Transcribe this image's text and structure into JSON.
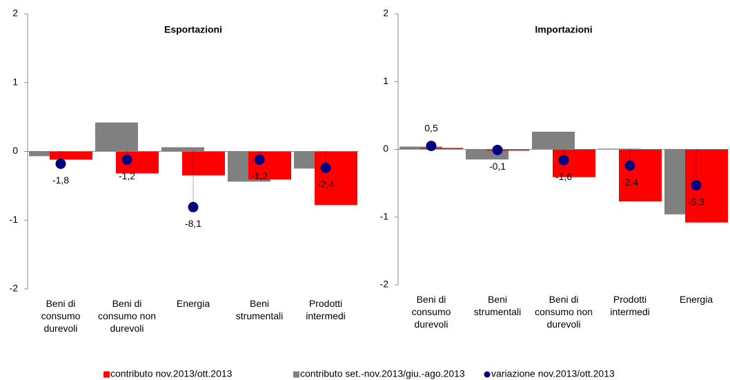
{
  "chart_data": [
    {
      "type": "bar",
      "title": "Esportazioni",
      "categories": [
        "Beni di\nconsumo\ndurevoli",
        "Beni di\nconsumo non\ndurevoli",
        "Energia",
        "Beni\nstrumentali",
        "Prodotti\nintermedi"
      ],
      "ylim": [
        -2,
        2
      ],
      "yticks": [
        -2,
        -1,
        0,
        1,
        2
      ],
      "y2lim": [
        -20,
        20
      ],
      "series": [
        {
          "name": "contributo nov.2013/ott.2013",
          "color": "#ff0000",
          "values": [
            -0.12,
            -0.32,
            -0.35,
            -0.41,
            -0.78
          ]
        },
        {
          "name": "contributo set.-nov.2013/giu.-ago.2013",
          "color": "#808080",
          "values": [
            -0.07,
            0.42,
            0.06,
            -0.44,
            -0.25
          ]
        },
        {
          "name": "variazione nov.2013/ott.2013",
          "color": "#000080",
          "type": "scatter",
          "axis": "y2",
          "values": [
            -1.8,
            -1.2,
            -8.1,
            -1.2,
            -2.4
          ],
          "value_labels": [
            "-1,8",
            "-1,2",
            "-8,1",
            "-1,2",
            "-2,4"
          ]
        }
      ]
    },
    {
      "type": "bar",
      "title": "Importazioni",
      "categories": [
        "Beni di\nconsumo\ndurevoli",
        "Beni\nstrumentali",
        "Beni di\nconsumo non\ndurevoli",
        "Prodotti\nintermedi",
        "Energia"
      ],
      "ylim": [
        -2,
        2
      ],
      "yticks": [
        -2,
        -1,
        0,
        1,
        2
      ],
      "y2lim": [
        -20,
        20
      ],
      "series": [
        {
          "color": "#ff0000",
          "values": [
            0.02,
            -0.02,
            -0.41,
            -0.77,
            -1.08
          ]
        },
        {
          "color": "#808080",
          "values": [
            0.04,
            -0.15,
            0.26,
            0.01,
            -0.96
          ]
        },
        {
          "color": "#000080",
          "type": "scatter",
          "axis": "y2",
          "values": [
            0.5,
            -0.1,
            -1.6,
            -2.4,
            -5.3
          ],
          "value_labels": [
            "0,5",
            "-0,1",
            "-1,6",
            "-2,4",
            "-5,3"
          ]
        }
      ]
    }
  ]
}
